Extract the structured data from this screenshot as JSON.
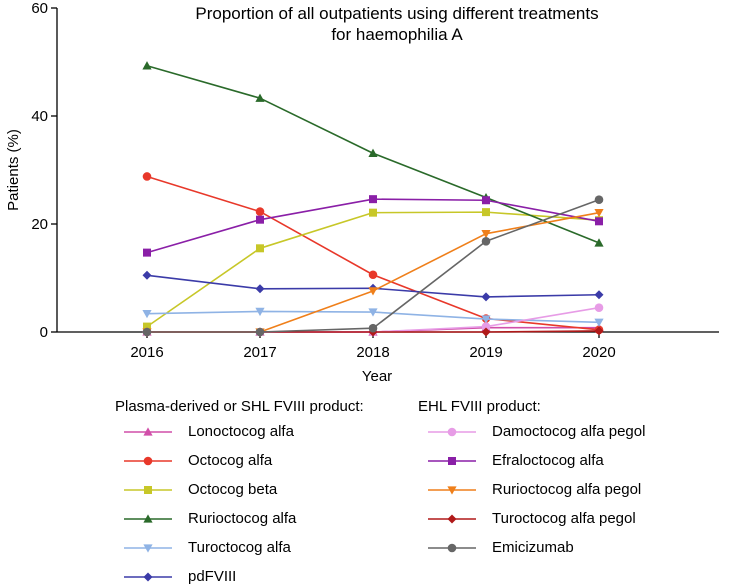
{
  "chart_data": {
    "type": "line",
    "title": "Proportion of all outpatients using different treatments for haemophilia A",
    "title_lines": [
      "Proportion of all outpatients using different treatments",
      "for haemophilia A"
    ],
    "xlabel": "Year",
    "ylabel": "Patients (%)",
    "x": [
      2016,
      2017,
      2018,
      2019,
      2020
    ],
    "x_tick_labels": [
      "2016",
      "2017",
      "2018",
      "2019",
      "2020"
    ],
    "ylim": [
      0,
      60
    ],
    "y_ticks": [
      0,
      20,
      40,
      60
    ],
    "y_tick_labels": [
      "0",
      "20",
      "40",
      "60"
    ],
    "grid": false,
    "legend_groups": [
      {
        "title": "Plasma-derived or SHL FVIII product:",
        "series": [
          "Lonoctocog alfa",
          "Octocog alfa",
          "Octocog beta",
          "Rurioctocog alfa",
          "Turoctocog alfa",
          "pdFVIII"
        ]
      },
      {
        "title": "EHL FVIII product:",
        "series": [
          "Damoctocog alfa pegol",
          "Efraloctocog alfa",
          "Rurioctocog alfa pegol",
          "Turoctocog alfa pegol",
          "Emicizumab"
        ]
      }
    ],
    "series": [
      {
        "name": "Lonoctocog alfa",
        "color": "#d14fa9",
        "marker": "triangle-up",
        "values": [
          0,
          0,
          0,
          0.8,
          0.8
        ]
      },
      {
        "name": "Octocog alfa",
        "color": "#e8382a",
        "marker": "circle",
        "values": [
          28.8,
          22.3,
          10.6,
          2.5,
          0.4
        ]
      },
      {
        "name": "Octocog beta",
        "color": "#c7c728",
        "marker": "square",
        "values": [
          1.0,
          15.5,
          22.1,
          22.2,
          20.7
        ]
      },
      {
        "name": "Rurioctocog alfa",
        "color": "#2a6a2a",
        "marker": "triangle-up",
        "values": [
          49.3,
          43.3,
          33.1,
          24.9,
          16.5
        ]
      },
      {
        "name": "Turoctocog alfa",
        "color": "#8fb3e5",
        "marker": "triangle-down",
        "values": [
          3.4,
          3.8,
          3.7,
          2.4,
          1.8
        ]
      },
      {
        "name": "pdFVIII",
        "color": "#3b3ba8",
        "marker": "diamond",
        "values": [
          10.5,
          8.0,
          8.1,
          6.5,
          6.9
        ]
      },
      {
        "name": "Damoctocog alfa pegol",
        "color": "#e79ce6",
        "marker": "circle",
        "values": [
          0,
          0,
          0,
          1.0,
          4.5
        ]
      },
      {
        "name": "Efraloctocog alfa",
        "color": "#8a1fa7",
        "marker": "square",
        "values": [
          14.7,
          20.8,
          24.6,
          24.4,
          20.5
        ]
      },
      {
        "name": "Rurioctocog alfa pegol",
        "color": "#ef7f1a",
        "marker": "triangle-down",
        "values": [
          0,
          0,
          7.6,
          18.2,
          22.1
        ]
      },
      {
        "name": "Turoctocog alfa pegol",
        "color": "#b01919",
        "marker": "diamond",
        "values": [
          0,
          0,
          0,
          0,
          0.2
        ]
      },
      {
        "name": "Emicizumab",
        "color": "#666666",
        "marker": "circle",
        "values": [
          0,
          0,
          0.7,
          16.8,
          24.5
        ]
      }
    ]
  }
}
